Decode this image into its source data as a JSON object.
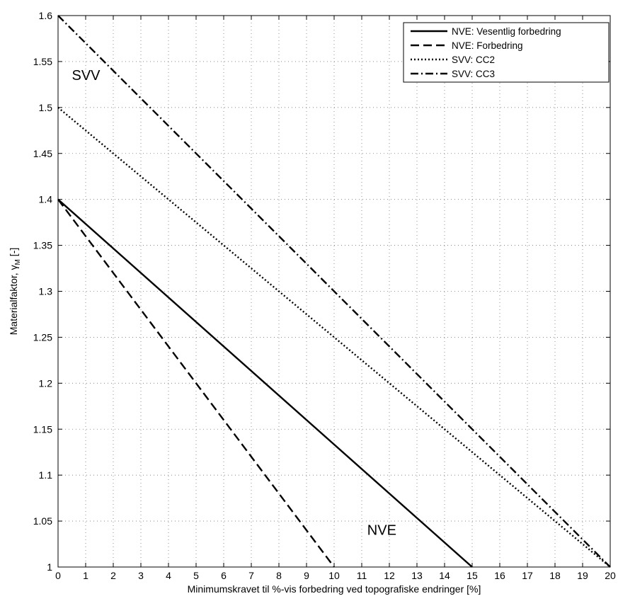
{
  "chart_data": {
    "type": "line",
    "xlabel": "Minimumskravet til %-vis forbedring ved topografiske endringer [%]",
    "ylabel_main": "Materialfaktor, γ",
    "ylabel_sub": "M",
    "ylabel_suffix": " [-]",
    "xlim": [
      0,
      20
    ],
    "ylim": [
      1,
      1.6
    ],
    "grid": true,
    "legend_placement": "top-right",
    "x_ticks": [
      "0",
      "1",
      "2",
      "3",
      "4",
      "5",
      "6",
      "7",
      "8",
      "9",
      "10",
      "11",
      "12",
      "13",
      "14",
      "15",
      "16",
      "17",
      "18",
      "19",
      "20"
    ],
    "y_ticks": [
      "1",
      "1.05",
      "1.1",
      "1.15",
      "1.2",
      "1.25",
      "1.3",
      "1.35",
      "1.4",
      "1.45",
      "1.5",
      "1.55",
      "1.6"
    ],
    "series": [
      {
        "name": "NVE: Vesentlig forbedring",
        "style": "solid",
        "x": [
          0,
          15
        ],
        "y": [
          1.4,
          1.0
        ]
      },
      {
        "name": "NVE: Forbedring",
        "style": "dashed",
        "x": [
          0,
          10
        ],
        "y": [
          1.4,
          1.0
        ]
      },
      {
        "name": "SVV: CC2",
        "style": "dotted",
        "x": [
          0,
          20
        ],
        "y": [
          1.5,
          1.0
        ]
      },
      {
        "name": "SVV: CC3",
        "style": "dashdot",
        "x": [
          0,
          20
        ],
        "y": [
          1.6,
          1.0
        ]
      }
    ],
    "annotations": [
      {
        "text": "SVV",
        "x": 0.5,
        "y": 1.53
      },
      {
        "text": "NVE",
        "x": 11.2,
        "y": 1.035
      }
    ]
  }
}
